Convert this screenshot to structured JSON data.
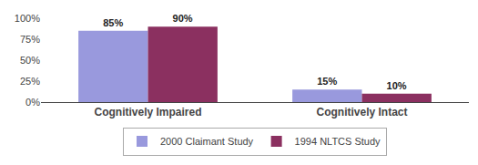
{
  "chart_data": {
    "type": "bar",
    "categories": [
      "Cognitively Impaired",
      "Cognitively Intact"
    ],
    "series": [
      {
        "name": "2000 Claimant Study",
        "color": "#9999dd",
        "values": [
          85,
          15
        ],
        "value_labels": [
          "85%",
          "15%"
        ]
      },
      {
        "name": "1994 NLTCS Study",
        "color": "#8b3060",
        "values": [
          90,
          10
        ],
        "value_labels": [
          "90%",
          "10%"
        ]
      }
    ],
    "ylim": [
      0,
      100
    ],
    "yticks": [
      {
        "value": 0,
        "label": "0%"
      },
      {
        "value": 25,
        "label": "25%"
      },
      {
        "value": 50,
        "label": "50%"
      },
      {
        "value": 75,
        "label": "75%"
      },
      {
        "value": 100,
        "label": "100%"
      }
    ],
    "data_labels": true,
    "grid": false,
    "legend": "bottom"
  }
}
